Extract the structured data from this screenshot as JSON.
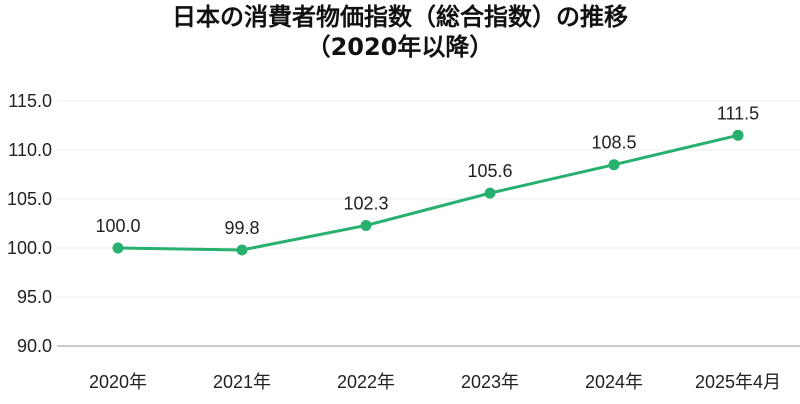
{
  "chart_data": {
    "type": "line",
    "title": [
      "日本の消費者物価指数（総合指数）の推移",
      "（2020年以降）"
    ],
    "categories": [
      "2020年",
      "2021年",
      "2022年",
      "2023年",
      "2024年",
      "2025年4月"
    ],
    "series": [
      {
        "name": "消費者物価指数",
        "values": [
          100.0,
          99.8,
          102.3,
          105.6,
          108.5,
          111.5
        ]
      }
    ],
    "data_labels": [
      "100.0",
      "99.8",
      "102.3",
      "105.6",
      "108.5",
      "111.5"
    ],
    "yticks": [
      "90.0",
      "95.0",
      "100.0",
      "105.0",
      "110.0",
      "115.0"
    ],
    "ylim": [
      90,
      115
    ],
    "grid": true,
    "xlabel": "",
    "ylabel": "",
    "color": "#27b06e"
  }
}
